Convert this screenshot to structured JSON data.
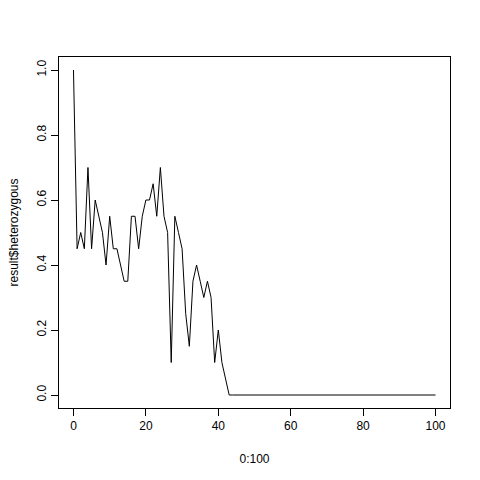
{
  "chart_data": {
    "type": "line",
    "x_label": "0:100",
    "y_label": "result$heterozygous",
    "x": [
      0,
      1,
      2,
      3,
      4,
      5,
      6,
      7,
      8,
      9,
      10,
      11,
      12,
      13,
      14,
      15,
      16,
      17,
      18,
      19,
      20,
      21,
      22,
      23,
      24,
      25,
      26,
      27,
      28,
      29,
      30,
      31,
      32,
      33,
      34,
      35,
      36,
      37,
      38,
      39,
      40,
      41,
      42,
      43,
      44,
      45,
      46,
      47,
      48,
      49,
      50,
      51,
      52,
      53,
      54,
      55,
      56,
      57,
      58,
      59,
      60,
      61,
      62,
      63,
      64,
      65,
      66,
      67,
      68,
      69,
      70,
      71,
      72,
      73,
      74,
      75,
      76,
      77,
      78,
      79,
      80,
      81,
      82,
      83,
      84,
      85,
      86,
      87,
      88,
      89,
      90,
      91,
      92,
      93,
      94,
      95,
      96,
      97,
      98,
      99,
      100
    ],
    "values": [
      1.0,
      0.45,
      0.5,
      0.45,
      0.7,
      0.45,
      0.6,
      0.55,
      0.5,
      0.4,
      0.55,
      0.45,
      0.45,
      0.4,
      0.35,
      0.35,
      0.55,
      0.55,
      0.45,
      0.55,
      0.6,
      0.6,
      0.65,
      0.55,
      0.7,
      0.55,
      0.5,
      0.1,
      0.55,
      0.5,
      0.45,
      0.25,
      0.15,
      0.35,
      0.4,
      0.35,
      0.3,
      0.35,
      0.3,
      0.1,
      0.2,
      0.1,
      0.05,
      0,
      0,
      0,
      0,
      0,
      0,
      0,
      0,
      0,
      0,
      0,
      0,
      0,
      0,
      0,
      0,
      0,
      0,
      0,
      0,
      0,
      0,
      0,
      0,
      0,
      0,
      0,
      0,
      0,
      0,
      0,
      0,
      0,
      0,
      0,
      0,
      0,
      0,
      0,
      0,
      0,
      0,
      0,
      0,
      0,
      0,
      0,
      0,
      0,
      0,
      0,
      0,
      0,
      0,
      0,
      0,
      0,
      0
    ],
    "color": "#000000",
    "xlim": [
      -4,
      104
    ],
    "xticks": [
      0,
      20,
      40,
      60,
      80,
      100
    ],
    "ylim": [
      -0.04,
      1.04
    ],
    "yticks": [
      {
        "value": 0,
        "label": "0.0"
      },
      0.2,
      0.4,
      0.6,
      0.8,
      {
        "value": 1,
        "label": "1.0"
      }
    ],
    "grid": false
  }
}
